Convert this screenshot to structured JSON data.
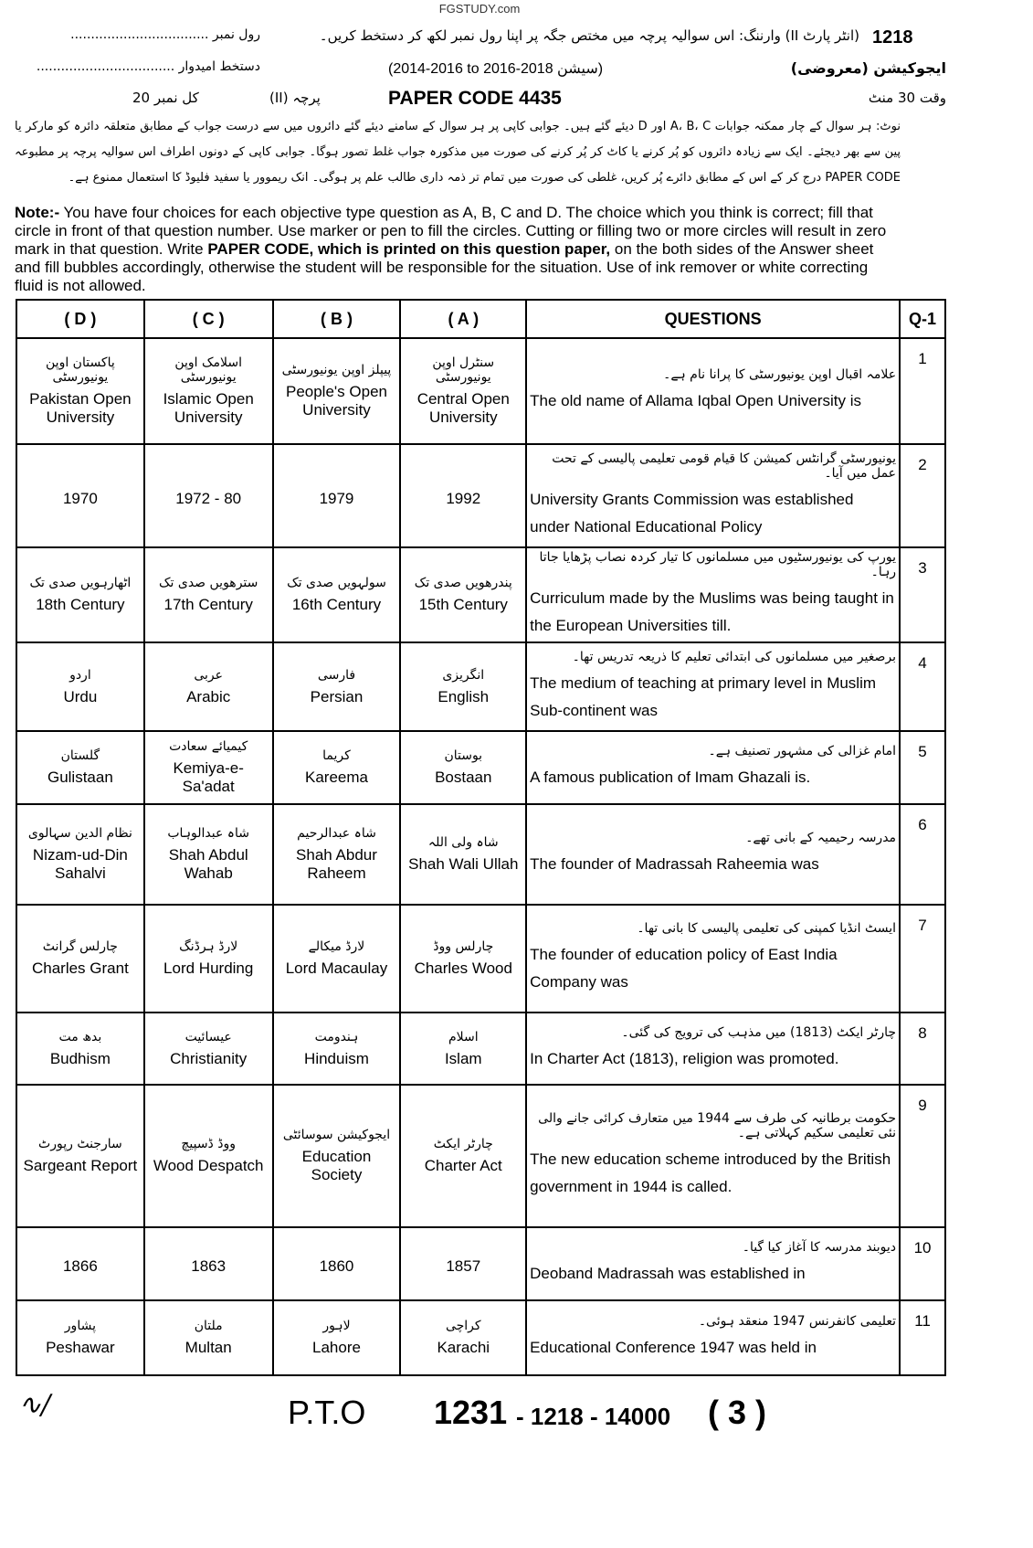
{
  "site": "FGSTUDY.com",
  "header": {
    "code": "1218",
    "warning_urdu": "(انٹر پارٹ II) وارننگ: اس سوالیہ پرچہ میں مختص جگہ پر اپنا رول نمبر لکھ کر دستخط کریں۔",
    "roll_label": "رول نمبر",
    "signature_label": "دستخط امیدوار",
    "subject_urdu": "ایجوکیشن (معروضی)",
    "session": "(2014-2016 to 2016-2018 سیشن)",
    "time": "وقت 30 منٹ",
    "paper": "پرچہ (II)",
    "paper_code": "PAPER CODE  4435",
    "marks": "کل نمبر 20"
  },
  "note_urdu": "نوٹ: ہر سوال کے چار ممکنہ جوابات A، B، C اور D دیئے گئے ہیں۔ جوابی کاپی پر ہر سوال کے سامنے دیئے گئے دائروں میں سے درست جواب کے مطابق متعلقہ دائرہ کو مارکر یا پین سے بھر دیجئے۔ ایک سے زیادہ دائروں کو پُر کرنے یا کاٹ کر پُر کرنے کی صورت میں مذکورہ جواب غلط تصور ہوگا۔ جوابی کاپی کے دونوں اطراف اس سوالیہ پرچہ پر مطبوعہ PAPER CODE درج کر کے اس کے مطابق دائرے پُر کریں، غلطی کی صورت میں تمام تر ذمہ داری طالب علم پر ہوگی۔ انک ریموور یا سفید فلیوڈ کا استعمال ممنوع ہے۔",
  "note_label": "Note:-",
  "note_text_1": " You have four choices for each objective type question as A, B, C and D.  The choice which you think is correct; fill that circle in front of that question number.  Use marker or pen to fill the circles. Cutting or filling two or more circles will result in zero mark in that question.  Write ",
  "note_bold": "PAPER CODE, which is printed on this question paper,",
  "note_text_2": " on the both sides of the Answer sheet and fill bubbles accordingly, otherwise the student will be responsible for the situation. Use of ink remover or white correcting fluid is not allowed.",
  "table": {
    "headers": [
      "( D )",
      "( C )",
      "( B )",
      "( A )",
      "QUESTIONS",
      "Q-1"
    ],
    "rows": [
      {
        "n": "1",
        "qu": "علامہ اقبال اوپن یونیورسٹی کا پرانا نام ہے۔",
        "qe": "The old name of Allama Iqbal Open University is",
        "a": [
          "سنٹرل اوپن یونیورسٹی",
          "Central Open University"
        ],
        "b": [
          "پیپلز اوپن یونیورسٹی",
          "People's Open University"
        ],
        "c": [
          "اسلامک اوپن یونیورسٹی",
          "Islamic Open University"
        ],
        "d": [
          "پاکستان اوپن یونیورسٹی",
          "Pakistan Open University"
        ]
      },
      {
        "n": "2",
        "qu": "یونیورسٹی گرانٹس کمیشن کا قیام قومی تعلیمی پالیسی کے تحت عمل میں آیا۔",
        "qe": "University Grants Commission was established under National Educational Policy",
        "a": [
          "",
          "1992"
        ],
        "b": [
          "",
          "1979"
        ],
        "c": [
          "",
          "1972 - 80"
        ],
        "d": [
          "",
          "1970"
        ]
      },
      {
        "n": "3",
        "qu": "یورپ کی یونیورسٹیوں میں مسلمانوں کا تیار کردہ نصاب پڑھایا جاتا رہا۔",
        "qe": "Curriculum made by the Muslims was being taught in the European Universities till.",
        "a": [
          "پندرھویں صدی تک",
          "15th Century"
        ],
        "b": [
          "سولہویں صدی تک",
          "16th Century"
        ],
        "c": [
          "سترھویں صدی تک",
          "17th Century"
        ],
        "d": [
          "اٹھارہویں صدی تک",
          "18th Century"
        ]
      },
      {
        "n": "4",
        "qu": "برصغیر میں مسلمانوں کی ابتدائی تعلیم کا ذریعہ تدریس تھا۔",
        "qe": "The medium of teaching at primary level in Muslim Sub-continent was",
        "a": [
          "انگریزی",
          "English"
        ],
        "b": [
          "فارسی",
          "Persian"
        ],
        "c": [
          "عربی",
          "Arabic"
        ],
        "d": [
          "اردو",
          "Urdu"
        ]
      },
      {
        "n": "5",
        "qu": "امام غزالی کی مشہور تصنیف ہے۔",
        "qe": "A famous publication of Imam Ghazali is.",
        "a": [
          "بوستان",
          "Bostaan"
        ],
        "b": [
          "کریما",
          "Kareema"
        ],
        "c": [
          "کیمیائے سعادت",
          "Kemiya-e-Sa'adat"
        ],
        "d": [
          "گلستان",
          "Gulistaan"
        ]
      },
      {
        "n": "6",
        "qu": "مدرسہ رحیمیہ کے بانی تھے۔",
        "qe": "The founder of Madrassah Raheemia was",
        "a": [
          "شاہ ولی اللہ",
          "Shah Wali Ullah"
        ],
        "b": [
          "شاہ عبدالرحیم",
          "Shah Abdur Raheem"
        ],
        "c": [
          "شاہ عبدالوہاب",
          "Shah Abdul Wahab"
        ],
        "d": [
          "نظام الدین سہالوی",
          "Nizam-ud-Din Sahalvi"
        ]
      },
      {
        "n": "7",
        "qu": "ایسٹ انڈیا کمپنی کی تعلیمی پالیسی کا بانی تھا۔",
        "qe": "The founder of education policy of East India Company was",
        "a": [
          "چارلس ووڈ",
          "Charles Wood"
        ],
        "b": [
          "لارڈ میکالے",
          "Lord Macaulay"
        ],
        "c": [
          "لارڈ ہرڈنگ",
          "Lord Hurding"
        ],
        "d": [
          "چارلس گرانٹ",
          "Charles Grant"
        ]
      },
      {
        "n": "8",
        "qu": "چارٹر ایکٹ (1813) میں مذہب کی ترویج کی گئی۔",
        "qe": "In Charter Act (1813), religion was promoted.",
        "a": [
          "اسلام",
          "Islam"
        ],
        "b": [
          "ہندومت",
          "Hinduism"
        ],
        "c": [
          "عیسائیت",
          "Christianity"
        ],
        "d": [
          "بدھ مت",
          "Budhism"
        ]
      },
      {
        "n": "9",
        "qu": "حکومت برطانیہ کی طرف سے 1944 میں متعارف کرائی جانے والی نئی تعلیمی سکیم کہلاتی ہے۔",
        "qe": "The new education scheme introduced by the British government in 1944 is called.",
        "a": [
          "چارٹر ایکٹ",
          "Charter Act"
        ],
        "b": [
          "ایجوکیشن سوسائٹی",
          "Education Society"
        ],
        "c": [
          "ووڈ ڈسپیچ",
          "Wood Despatch"
        ],
        "d": [
          "سارجنٹ رپورٹ",
          "Sargeant Report"
        ]
      },
      {
        "n": "10",
        "qu": "دیوبند مدرسہ کا آغاز کیا گیا۔",
        "qe": "Deoband Madrassah was established in",
        "a": [
          "",
          "1857"
        ],
        "b": [
          "",
          "1860"
        ],
        "c": [
          "",
          "1863"
        ],
        "d": [
          "",
          "1866"
        ]
      },
      {
        "n": "11",
        "qu": "تعلیمی کانفرنس 1947 منعقد ہوئی۔",
        "qe": "Educational Conference 1947 was held in",
        "a": [
          "کراچی",
          "Karachi"
        ],
        "b": [
          "لاہور",
          "Lahore"
        ],
        "c": [
          "ملتان",
          "Multan"
        ],
        "d": [
          "پشاور",
          "Peshawar"
        ]
      }
    ]
  },
  "footer": {
    "pto": "P.T.O",
    "code": "1231",
    "rest": "- 1218 - 14000",
    "page": "( 3 )"
  }
}
